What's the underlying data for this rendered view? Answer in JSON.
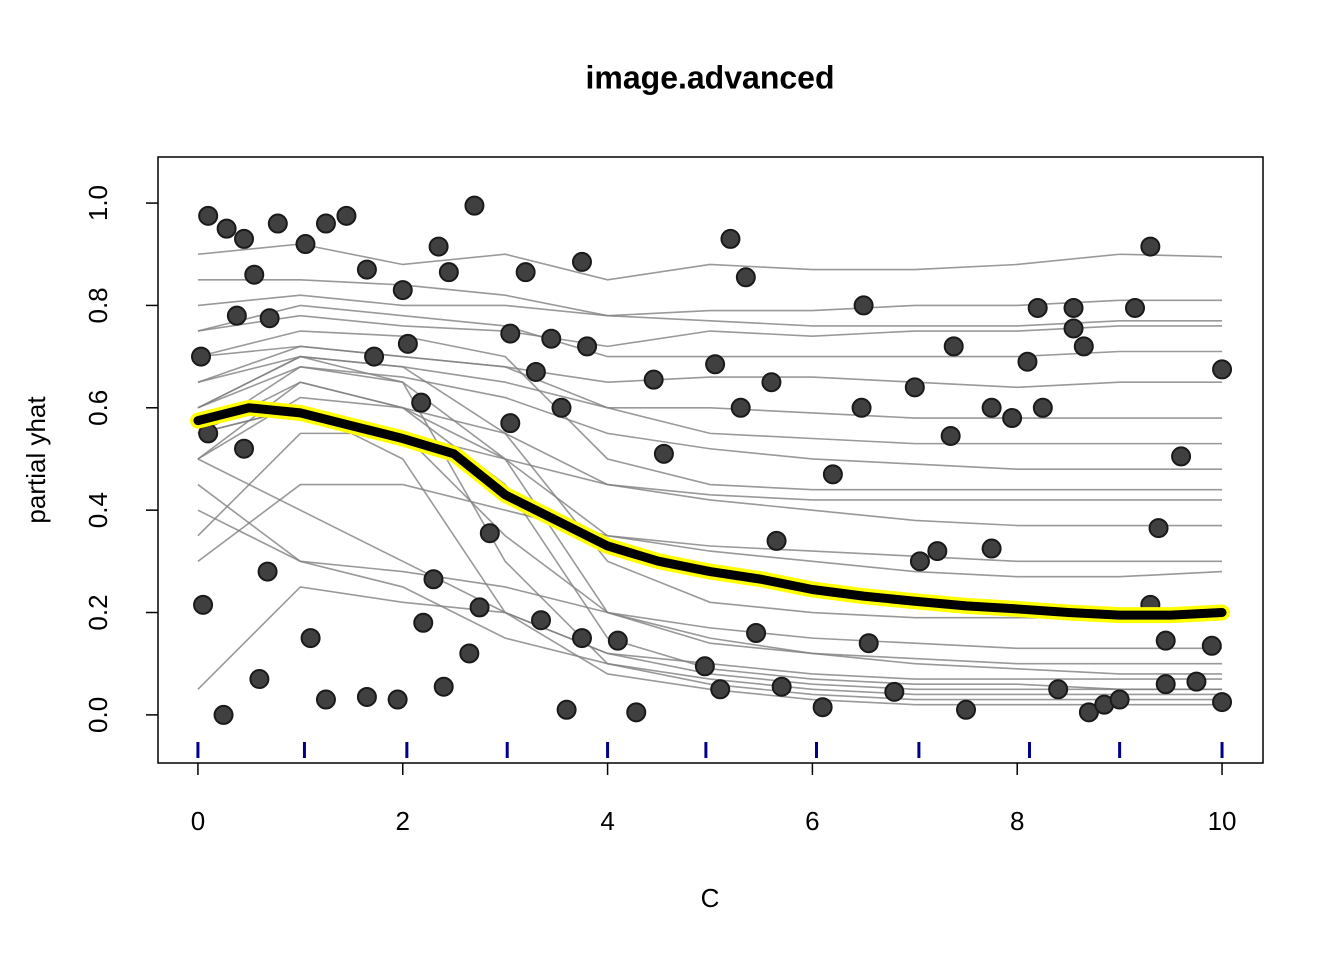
{
  "chart_data": {
    "type": "ice",
    "title": "image.advanced",
    "x_label": "C",
    "y_label": "partial yhat",
    "xlim": [
      -0.39,
      10.4
    ],
    "ylim": [
      -0.094,
      1.09
    ],
    "xticks": [
      0,
      2,
      4,
      6,
      8,
      10
    ],
    "yticks": [
      {
        "value": 0,
        "label": "0.0"
      },
      {
        "value": 0.2,
        "label": "0.2"
      },
      {
        "value": 0.4,
        "label": "0.4"
      },
      {
        "value": 0.6,
        "label": "0.6"
      },
      {
        "value": 0.8,
        "label": "0.8"
      },
      {
        "value": 1,
        "label": "1.0"
      }
    ],
    "grid": false,
    "ice_color": "#808080",
    "ice_x": [
      0,
      1,
      2,
      3,
      4,
      5,
      6,
      7,
      8,
      9,
      10
    ],
    "ice_curves": [
      [
        0.9,
        0.92,
        0.88,
        0.9,
        0.85,
        0.88,
        0.87,
        0.87,
        0.88,
        0.9,
        0.895
      ],
      [
        0.8,
        0.82,
        0.8,
        0.8,
        0.78,
        0.79,
        0.79,
        0.8,
        0.8,
        0.81,
        0.81
      ],
      [
        0.75,
        0.78,
        0.76,
        0.75,
        0.72,
        0.75,
        0.74,
        0.75,
        0.75,
        0.76,
        0.76
      ],
      [
        0.7,
        0.72,
        0.7,
        0.68,
        0.65,
        0.66,
        0.66,
        0.65,
        0.64,
        0.65,
        0.65
      ],
      [
        0.65,
        0.7,
        0.68,
        0.65,
        0.6,
        0.6,
        0.59,
        0.58,
        0.58,
        0.58,
        0.58
      ],
      [
        0.6,
        0.68,
        0.66,
        0.62,
        0.55,
        0.52,
        0.5,
        0.49,
        0.48,
        0.48,
        0.48
      ],
      [
        0.55,
        0.65,
        0.6,
        0.55,
        0.45,
        0.42,
        0.4,
        0.38,
        0.37,
        0.37,
        0.37
      ],
      [
        0.5,
        0.62,
        0.6,
        0.5,
        0.35,
        0.32,
        0.3,
        0.28,
        0.27,
        0.27,
        0.28
      ],
      [
        0.6,
        0.7,
        0.68,
        0.55,
        0.3,
        0.22,
        0.2,
        0.19,
        0.19,
        0.19,
        0.19
      ],
      [
        0.55,
        0.68,
        0.65,
        0.5,
        0.2,
        0.14,
        0.12,
        0.11,
        0.1,
        0.1,
        0.1
      ],
      [
        0.5,
        0.65,
        0.6,
        0.45,
        0.15,
        0.09,
        0.07,
        0.06,
        0.06,
        0.05,
        0.05
      ],
      [
        0.6,
        0.7,
        0.65,
        0.3,
        0.1,
        0.06,
        0.04,
        0.03,
        0.03,
        0.03,
        0.03
      ],
      [
        0.55,
        0.6,
        0.5,
        0.2,
        0.08,
        0.05,
        0.03,
        0.02,
        0.02,
        0.02,
        0.02
      ],
      [
        0.5,
        0.4,
        0.3,
        0.2,
        0.12,
        0.08,
        0.06,
        0.05,
        0.05,
        0.05,
        0.05
      ],
      [
        0.45,
        0.3,
        0.25,
        0.15,
        0.1,
        0.07,
        0.05,
        0.04,
        0.04,
        0.04,
        0.04
      ],
      [
        0.4,
        0.3,
        0.28,
        0.25,
        0.2,
        0.17,
        0.15,
        0.14,
        0.13,
        0.13,
        0.13
      ],
      [
        0.35,
        0.55,
        0.55,
        0.5,
        0.45,
        0.43,
        0.42,
        0.42,
        0.42,
        0.42,
        0.42
      ],
      [
        0.3,
        0.45,
        0.45,
        0.4,
        0.35,
        0.33,
        0.32,
        0.31,
        0.3,
        0.3,
        0.3
      ],
      [
        0.65,
        0.72,
        0.7,
        0.68,
        0.6,
        0.55,
        0.54,
        0.53,
        0.53,
        0.53,
        0.53
      ],
      [
        0.75,
        0.8,
        0.78,
        0.76,
        0.7,
        0.7,
        0.7,
        0.7,
        0.7,
        0.71,
        0.71
      ],
      [
        0.7,
        0.75,
        0.74,
        0.7,
        0.5,
        0.45,
        0.44,
        0.44,
        0.44,
        0.44,
        0.44
      ],
      [
        0.55,
        0.6,
        0.55,
        0.35,
        0.2,
        0.15,
        0.12,
        0.1,
        0.09,
        0.08,
        0.08
      ],
      [
        0.05,
        0.25,
        0.22,
        0.2,
        0.12,
        0.1,
        0.08,
        0.07,
        0.07,
        0.07,
        0.07
      ],
      [
        0.85,
        0.85,
        0.84,
        0.82,
        0.78,
        0.77,
        0.76,
        0.76,
        0.76,
        0.77,
        0.77
      ]
    ],
    "pd_x": [
      0,
      0.5,
      1,
      1.5,
      2,
      2.5,
      3,
      3.5,
      4,
      4.5,
      5,
      5.5,
      6,
      6.5,
      7,
      7.5,
      8,
      8.5,
      9,
      9.5,
      10
    ],
    "pd_values": [
      0.575,
      0.6,
      0.59,
      0.565,
      0.54,
      0.51,
      0.43,
      0.38,
      0.33,
      0.3,
      0.28,
      0.265,
      0.245,
      0.232,
      0.222,
      0.213,
      0.207,
      0.2,
      0.195,
      0.195,
      0.2
    ],
    "pd_color": "#000000",
    "pd_halo_color": "#ffff00",
    "points_color": "#404040",
    "points_x": [
      0.03,
      0.05,
      0.1,
      0.1,
      0.25,
      0.28,
      0.45,
      0.55,
      0.38,
      0.7,
      0.78,
      0.45,
      0.6,
      0.68,
      1.05,
      1.25,
      1.45,
      1.1,
      1.25,
      1.65,
      1.72,
      1.65,
      1.95,
      2.0,
      2.05,
      2.18,
      2.35,
      2.45,
      2.3,
      2.2,
      2.4,
      2.7,
      2.75,
      2.85,
      2.65,
      3.05,
      3.05,
      3.2,
      3.3,
      3.35,
      3.45,
      3.55,
      3.6,
      3.75,
      3.8,
      3.75,
      4.1,
      4.28,
      4.45,
      4.55,
      4.95,
      5.05,
      5.1,
      5.2,
      5.3,
      5.35,
      5.45,
      5.6,
      5.65,
      5.7,
      6.1,
      6.2,
      6.48,
      6.5,
      6.55,
      6.8,
      7.0,
      7.05,
      7.22,
      7.35,
      7.38,
      7.5,
      7.75,
      7.75,
      7.95,
      8.1,
      8.2,
      8.25,
      8.55,
      8.55,
      8.65,
      8.7,
      8.85,
      9.15,
      9.3,
      9.38,
      9.3,
      9.45,
      9.6,
      9.75,
      9.9,
      10.0,
      10.0,
      9.0,
      9.45,
      8.4
    ],
    "points_y": [
      0.7,
      0.215,
      0.975,
      0.55,
      0.0,
      0.95,
      0.93,
      0.86,
      0.78,
      0.775,
      0.96,
      0.52,
      0.07,
      0.28,
      0.92,
      0.96,
      0.975,
      0.15,
      0.03,
      0.87,
      0.7,
      0.035,
      0.03,
      0.83,
      0.725,
      0.61,
      0.915,
      0.865,
      0.265,
      0.18,
      0.055,
      0.995,
      0.21,
      0.355,
      0.12,
      0.745,
      0.57,
      0.865,
      0.67,
      0.185,
      0.735,
      0.6,
      0.01,
      0.885,
      0.72,
      0.15,
      0.145,
      0.005,
      0.655,
      0.51,
      0.095,
      0.685,
      0.05,
      0.93,
      0.6,
      0.855,
      0.16,
      0.65,
      0.34,
      0.055,
      0.015,
      0.47,
      0.6,
      0.8,
      0.14,
      0.045,
      0.64,
      0.3,
      0.32,
      0.545,
      0.72,
      0.01,
      0.6,
      0.325,
      0.58,
      0.69,
      0.795,
      0.6,
      0.795,
      0.755,
      0.72,
      0.005,
      0.02,
      0.795,
      0.915,
      0.365,
      0.215,
      0.145,
      0.505,
      0.065,
      0.135,
      0.675,
      0.025,
      0.03,
      0.06,
      0.05
    ],
    "rug_color": "#00008b",
    "rug": [
      0,
      1.04,
      2.04,
      3.02,
      4.0,
      4.96,
      6.04,
      7.04,
      8.12,
      9.0,
      10
    ]
  }
}
